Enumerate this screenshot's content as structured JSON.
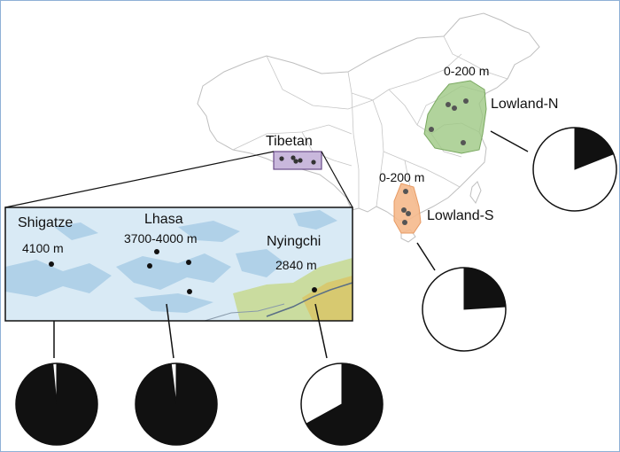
{
  "map": {
    "regions": {
      "tibetan": {
        "name": "Tibetan",
        "fill": "#c9b8dc",
        "stroke": "#6b4c8a"
      },
      "lowland_n": {
        "name": "Lowland-N",
        "altitude": "0-200 m",
        "fill": "#9dc883",
        "stroke": "#79a860"
      },
      "lowland_s": {
        "name": "Lowland-S",
        "altitude": "0-200 m",
        "fill": "#f5b98c",
        "stroke": "#e79a63"
      }
    },
    "inset": {
      "sites": [
        {
          "name": "Shigatze",
          "altitude": "4100 m"
        },
        {
          "name": "Lhasa",
          "altitude": "3700-4000 m"
        },
        {
          "name": "Nyingchi",
          "altitude": "2840 m"
        }
      ],
      "background": "#d9eaf5",
      "terrain": "#a9cde6",
      "forest": "#c6d88a",
      "mountain": "#d8c76a"
    }
  },
  "pies": {
    "lowland_n": {
      "black_fraction": 0.19
    },
    "lowland_s": {
      "black_fraction": 0.24
    },
    "shigatze": {
      "black_fraction": 0.985
    },
    "lhasa": {
      "black_fraction": 0.98
    },
    "nyingchi": {
      "black_fraction": 0.67
    }
  },
  "colors": {
    "pie_black": "#111111",
    "pie_white": "#ffffff",
    "border": "#8fb0d6"
  }
}
